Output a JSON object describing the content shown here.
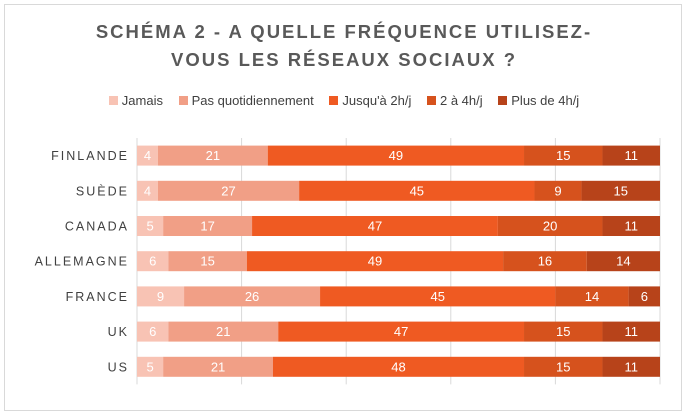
{
  "chart_data": {
    "type": "bar",
    "orientation": "horizontal",
    "stacked": "percent",
    "title_lines": [
      "SCHÉMA 2 - A QUELLE FRÉQUENCE UTILISEZ-",
      "VOUS LES RÉSEAUX SOCIAUX ?"
    ],
    "categories": [
      "FINLANDE",
      "SUÈDE",
      "CANADA",
      "ALLEMAGNE",
      "FRANCE",
      "UK",
      "US"
    ],
    "series": [
      {
        "name": "Jamais",
        "color": "#f8c3b4",
        "values": [
          4,
          4,
          5,
          6,
          9,
          6,
          5
        ]
      },
      {
        "name": "Pas quotidiennement",
        "color": "#f19f86",
        "values": [
          21,
          27,
          17,
          15,
          26,
          21,
          21
        ]
      },
      {
        "name": "Jusqu'à 2h/j",
        "color": "#ef5a22",
        "values": [
          49,
          45,
          47,
          49,
          45,
          47,
          48
        ]
      },
      {
        "name": "2 à 4h/j",
        "color": "#d6521d",
        "values": [
          15,
          9,
          20,
          16,
          14,
          15,
          15
        ]
      },
      {
        "name": "Plus de 4h/j",
        "color": "#b7431a",
        "values": [
          11,
          15,
          11,
          14,
          6,
          11,
          11
        ]
      }
    ],
    "legend_position": "top",
    "grid": "vertical",
    "data_labels": true
  }
}
